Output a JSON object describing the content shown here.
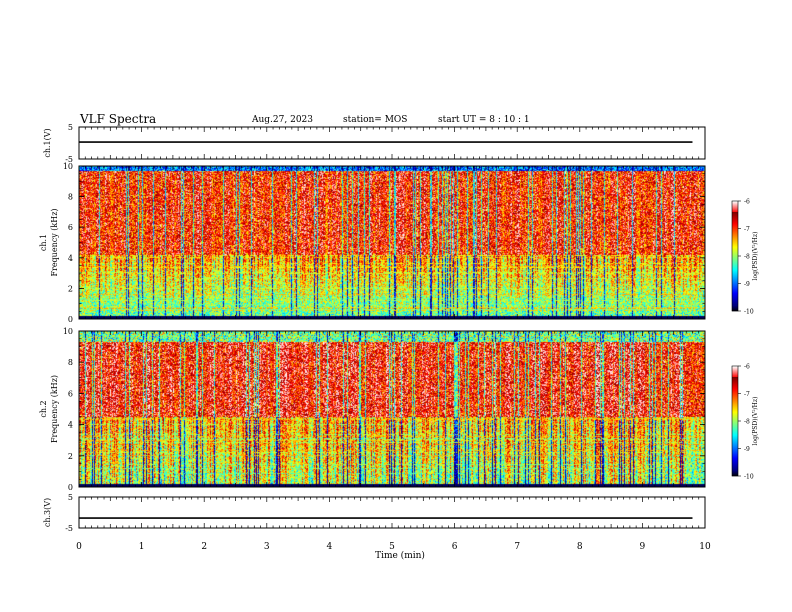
{
  "header": {
    "title": "VLF Spectra",
    "date": "Aug.27, 2023",
    "station": "station= MOS",
    "start": "start UT = 8 : 10 : 1"
  },
  "chart_data": [
    {
      "type": "line",
      "panel": "ch1-voltage",
      "ylabel": "ch.1(V)",
      "ylim": [
        -5,
        5
      ],
      "yticks": [
        "5",
        "-5"
      ],
      "xlim": [
        0,
        10
      ],
      "x": [
        0,
        9.8
      ],
      "series": [
        {
          "values": [
            0.3,
            0.3
          ]
        }
      ]
    },
    {
      "type": "heatmap",
      "panel": "ch1-spectrogram",
      "ylabel": "ch.1\nFrequency (kHz)",
      "ylim": [
        0,
        10
      ],
      "yticks": [
        "0",
        "2",
        "4",
        "6",
        "8",
        "10"
      ],
      "xlim": [
        0,
        10
      ],
      "colorbar": {
        "label": "log(PSD)(V²/Hz)",
        "range": [
          -10,
          -6
        ],
        "ticks": [
          "-6",
          "-7",
          "-8",
          "-9",
          "-10"
        ]
      }
    },
    {
      "type": "heatmap",
      "panel": "ch2-spectrogram",
      "ylabel": "ch.2\nFrequency (kHz)",
      "ylim": [
        0,
        10
      ],
      "yticks": [
        "0",
        "2",
        "4",
        "6",
        "8",
        "10"
      ],
      "xlim": [
        0,
        10
      ],
      "colorbar": {
        "label": "log(PSD)(V²/Hz)",
        "range": [
          -10,
          -6
        ],
        "ticks": [
          "-6",
          "-7",
          "-8",
          "-9",
          "-10"
        ]
      }
    },
    {
      "type": "line",
      "panel": "ch3-voltage",
      "ylabel": "ch.3(V)",
      "ylim": [
        -5,
        5
      ],
      "yticks": [
        "5",
        "-5"
      ],
      "xlim": [
        0,
        10
      ],
      "x": [
        0,
        9.8
      ],
      "series": [
        {
          "values": [
            -1.8,
            -1.8
          ]
        }
      ]
    }
  ],
  "x_axis": {
    "label": "Time (min)",
    "ticks": [
      "0",
      "1",
      "2",
      "3",
      "4",
      "5",
      "6",
      "7",
      "8",
      "9",
      "10"
    ]
  }
}
